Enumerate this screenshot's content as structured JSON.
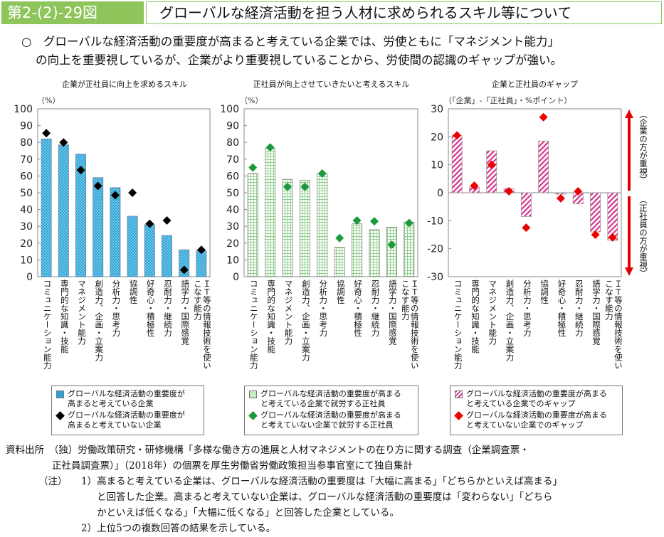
{
  "header": {
    "figure_no": "第2-(2)-29図",
    "title": "グローバルな経済活動を担う人材に求められるスキル等について"
  },
  "summary": {
    "line1": "○　グローバルな経済活動の重要度が高まると考えている企業では、労使ともに「マネジメント能力」",
    "line2": "の向上を重要視しているが、企業がより重要視していることから、労使間の認識のギャップが強い。"
  },
  "colors": {
    "header_green": "#8dc55b",
    "bar_blue": "#2aa3d6",
    "bar_green": "#9fd89b",
    "bar_pink": "#d6338f",
    "diamond_black": "#000000",
    "diamond_green": "#1a9a3c",
    "diamond_red": "#ee0000",
    "arrow_red": "#e30000"
  },
  "categories_display": [
    "コミュニケーション能力",
    "専門的な知識・技能",
    "マネジメント能力",
    "創造力、企画・立案力",
    "分析力・思考力",
    "協調性",
    "好奇心・積極性",
    "忍耐力・継続力",
    "語学力・国際感覚",
    "ＩＴ等の情報技術を使い|こなす能力"
  ],
  "chart_data": [
    {
      "type": "bar",
      "title": "企業が正社員に向上を求めるスキル",
      "ylabel": "（%）",
      "ylim": [
        0,
        100
      ],
      "yticks": [
        "0",
        "10",
        "20",
        "30",
        "40",
        "50",
        "60",
        "70",
        "80",
        "90",
        "100"
      ],
      "categories": [
        "コミュニケーション能力",
        "専門的な知識・技能",
        "マネジメント能力",
        "創造力、企画・立案力",
        "分析力・思考力",
        "協調性",
        "好奇心・積極性",
        "忍耐力・継続力",
        "語学力・国際感覚",
        "ＩＴ等の情報技術を使いこなす能力"
      ],
      "series": [
        {
          "name": "グローバルな経済活動の重要度が高まると考えている企業",
          "kind": "bar",
          "values": [
            82,
            78.5,
            73,
            59,
            53,
            36,
            31,
            24.5,
            16,
            15.5
          ]
        },
        {
          "name": "グローバルな経済活動の重要度が高まると考えていない企業",
          "kind": "diamond",
          "values": [
            85.5,
            80,
            63.5,
            54,
            48.5,
            50,
            31.5,
            33.5,
            4,
            16
          ]
        }
      ],
      "legend": [
        "グローバルな経済活動の重要度が|高まると考えている企業",
        "グローバルな経済活動の重要度が|高まると考えていない企業"
      ]
    },
    {
      "type": "bar",
      "title": "正社員が向上させていきたいと考えるスキル",
      "ylabel": "（%）",
      "ylim": [
        0,
        100
      ],
      "yticks": [
        "0",
        "10",
        "20",
        "30",
        "40",
        "50",
        "60",
        "70",
        "80",
        "90",
        "100"
      ],
      "categories": [
        "コミュニケーション能力",
        "専門的な知識・技能",
        "マネジメント能力",
        "創造力、企画・立案力",
        "分析力・思考力",
        "協調性",
        "好奇心・積極性",
        "忍耐力・継続力",
        "語学力・国際感覚",
        "ＩＴ等の情報技術を使いこなす能力"
      ],
      "series": [
        {
          "name": "グローバルな経済活動の重要度が高まると考えている企業で就労する正社員",
          "kind": "bar",
          "values": [
            61.5,
            76.5,
            58,
            57.5,
            61.5,
            17.5,
            31.5,
            28,
            29.5,
            32.5
          ]
        },
        {
          "name": "グローバルな経済活動の重要度が高まると考えていない企業で就労する正社員",
          "kind": "diamond",
          "values": [
            65,
            77,
            53.5,
            53.5,
            61.5,
            23,
            33.5,
            33,
            19,
            32
          ]
        }
      ],
      "legend": [
        "グローバルな経済活動の重要度が高まる|と考えている企業で就労する正社員",
        "グローバルな経済活動の重要度が高まる|と考えていない企業で就労する正社員"
      ]
    },
    {
      "type": "bar",
      "title": "企業と正社員のギャップ",
      "ylabel": "（「企業」-「正社員」・%ポイント）",
      "ylim": [
        -30,
        30
      ],
      "yticks": [
        "-30",
        "-20",
        "-10",
        "0",
        "10",
        "20",
        "30"
      ],
      "categories": [
        "コミュニケーション能力",
        "専門的な知識・技能",
        "マネジメント能力",
        "創造力、企画・立案力",
        "分析力・思考力",
        "協調性",
        "好奇心・積極性",
        "忍耐力・継続力",
        "語学力・国際感覚",
        "ＩＴ等の情報技術を使いこなす能力"
      ],
      "series": [
        {
          "name": "グローバルな経済活動の重要度が高まると考えている企業でのギャップ",
          "kind": "bar",
          "values": [
            20.5,
            2,
            15,
            1.5,
            -8.5,
            18.5,
            -0.5,
            -4,
            -14,
            -17
          ]
        },
        {
          "name": "グローバルな経済活動の重要度が高まると考えていない企業でのギャップ",
          "kind": "diamond",
          "values": [
            20.5,
            2.5,
            10,
            0.5,
            -12.5,
            27,
            -2,
            0.5,
            -15,
            -16
          ]
        }
      ],
      "legend": [
        "グローバルな経済活動の重要度が高まる|と考えている企業でのギャップ",
        "グローバルな経済活動の重要度が高まる|と考えていない企業でのギャップ"
      ],
      "annotations": {
        "up": "（企業の方が重視）",
        "down": "（正社員の方が重視）"
      }
    }
  ],
  "source": {
    "line1": "資料出所　（独）労働政策研究・研修機構「多様な働き方の進展と人材マネジメントの在り方に関する調査（企業調査票・",
    "line2": "正社員調査票）」（2018年）の個票を厚生労働省労働政策担当参事官室にて独自集計",
    "note_label": "（注）",
    "note1_a": "1）高まると考えている企業は、グローバルな経済活動の重要度は「大幅に高まる」「どちらかといえば高まる」",
    "note1_b": "と回答した企業。高まると考えていない企業は、グローバルな経済活動の重要度は「変わらない」「どちら",
    "note1_c": "かといえば低くなる」「大幅に低くなる」と回答した企業としている。",
    "note2": "2）上位5つの複数回答の結果を示している。"
  }
}
